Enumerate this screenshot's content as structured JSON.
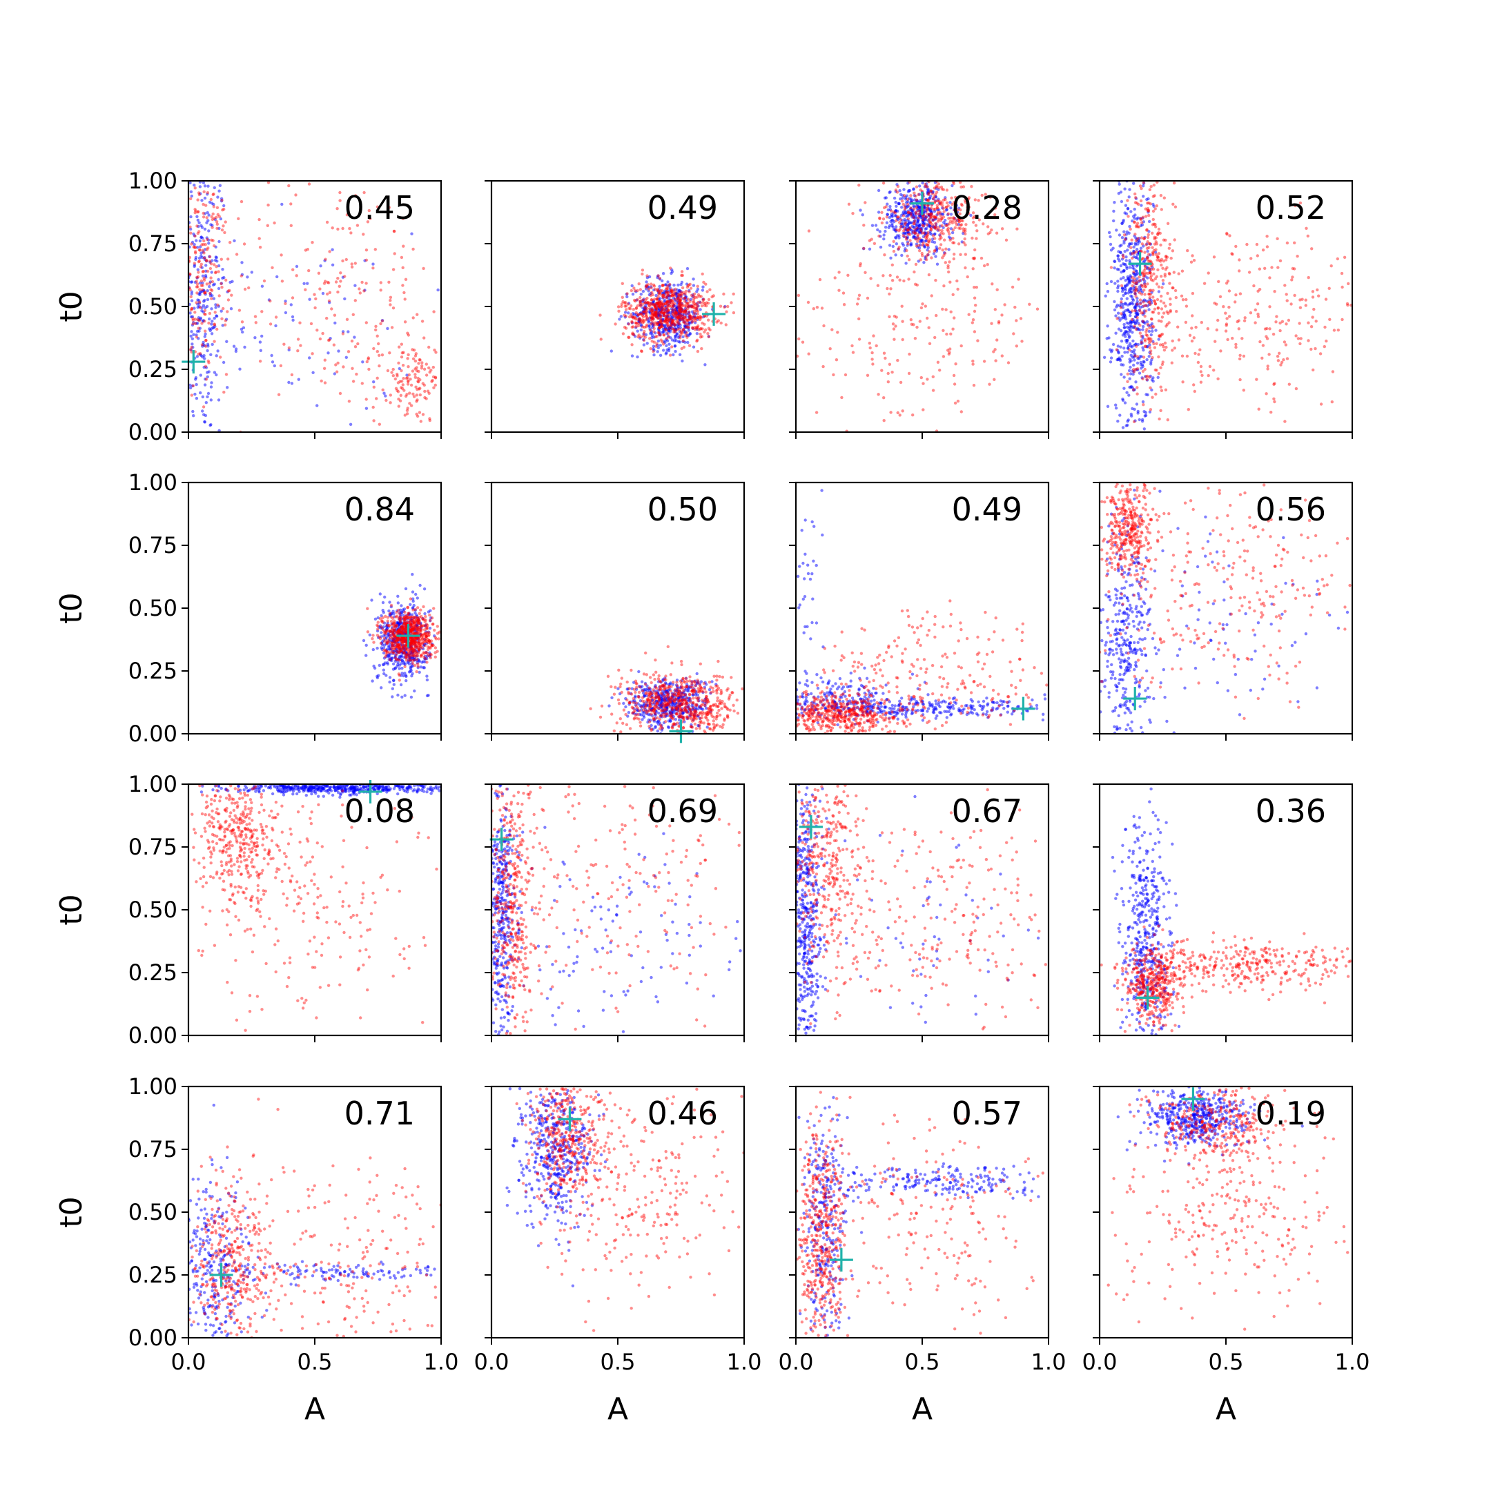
{
  "chart_data": {
    "type": "scatter",
    "layout": "4x4 grid of scatter panels",
    "x_label": "A",
    "y_label": "t0",
    "xlim": [
      0,
      1
    ],
    "ylim": [
      0,
      1
    ],
    "x_ticks": [
      0.0,
      0.5,
      1.0
    ],
    "x_tick_labels": [
      "0.0",
      "0.5",
      "1.0"
    ],
    "y_ticks": [
      0.0,
      0.25,
      0.5,
      0.75,
      1.0
    ],
    "y_tick_labels": [
      "0.00",
      "0.25",
      "0.50",
      "0.75",
      "1.00"
    ],
    "series_styles": [
      {
        "name": "blue samples",
        "color": "#0000ff"
      },
      {
        "name": "red samples",
        "color": "#ff0000"
      },
      {
        "name": "true value marker",
        "color": "#20b2aa",
        "marker": "+"
      }
    ],
    "panels": [
      {
        "value_label": "0.45",
        "marker": [
          0.02,
          0.28
        ],
        "clusters": [
          {
            "color": "blue",
            "n": 320,
            "cx": 0.05,
            "cy": 0.55,
            "sx": 0.05,
            "sy": 0.3
          },
          {
            "color": "blue",
            "n": 90,
            "cx": 0.4,
            "cy": 0.4,
            "sx": 0.25,
            "sy": 0.2
          },
          {
            "color": "red",
            "n": 220,
            "cx": 0.06,
            "cy": 0.65,
            "sx": 0.05,
            "sy": 0.2
          },
          {
            "color": "red",
            "n": 130,
            "cx": 0.88,
            "cy": 0.2,
            "sx": 0.07,
            "sy": 0.08
          },
          {
            "color": "red",
            "n": 220,
            "cx": 0.6,
            "cy": 0.55,
            "sx": 0.25,
            "sy": 0.25
          }
        ]
      },
      {
        "value_label": "0.49",
        "marker": [
          0.88,
          0.47
        ],
        "clusters": [
          {
            "color": "blue",
            "n": 500,
            "cx": 0.7,
            "cy": 0.47,
            "sx": 0.07,
            "sy": 0.07
          },
          {
            "color": "red",
            "n": 650,
            "cx": 0.7,
            "cy": 0.48,
            "sx": 0.09,
            "sy": 0.06
          }
        ]
      },
      {
        "value_label": "0.28",
        "marker": [
          0.5,
          0.91
        ],
        "clusters": [
          {
            "color": "blue",
            "n": 450,
            "cx": 0.48,
            "cy": 0.85,
            "sx": 0.07,
            "sy": 0.07
          },
          {
            "color": "red",
            "n": 350,
            "cx": 0.55,
            "cy": 0.85,
            "sx": 0.1,
            "sy": 0.08
          },
          {
            "color": "red",
            "n": 250,
            "cx": 0.45,
            "cy": 0.45,
            "sx": 0.28,
            "sy": 0.22
          }
        ]
      },
      {
        "value_label": "0.52",
        "marker": [
          0.16,
          0.67
        ],
        "clusters": [
          {
            "color": "blue",
            "n": 550,
            "cx": 0.13,
            "cy": 0.5,
            "sx": 0.04,
            "sy": 0.25
          },
          {
            "color": "red",
            "n": 350,
            "cx": 0.2,
            "cy": 0.6,
            "sx": 0.05,
            "sy": 0.22
          },
          {
            "color": "red",
            "n": 260,
            "cx": 0.6,
            "cy": 0.45,
            "sx": 0.25,
            "sy": 0.18
          }
        ]
      },
      {
        "value_label": "0.84",
        "marker": [
          0.87,
          0.39
        ],
        "clusters": [
          {
            "color": "blue",
            "n": 500,
            "cx": 0.85,
            "cy": 0.37,
            "sx": 0.05,
            "sy": 0.08
          },
          {
            "color": "red",
            "n": 650,
            "cx": 0.87,
            "cy": 0.39,
            "sx": 0.05,
            "sy": 0.05
          }
        ]
      },
      {
        "value_label": "0.50",
        "marker": [
          0.75,
          0.01
        ],
        "clusters": [
          {
            "color": "blue",
            "n": 450,
            "cx": 0.7,
            "cy": 0.12,
            "sx": 0.08,
            "sy": 0.05
          },
          {
            "color": "red",
            "n": 600,
            "cx": 0.75,
            "cy": 0.12,
            "sx": 0.12,
            "sy": 0.06
          }
        ]
      },
      {
        "value_label": "0.49",
        "marker": [
          0.9,
          0.1
        ],
        "clusters": [
          {
            "color": "blue",
            "n": 300,
            "cx": 0.5,
            "cy": 0.1,
            "sx": 0.3,
            "sy": 0.02
          },
          {
            "color": "blue",
            "n": 150,
            "cx": 0.2,
            "cy": 0.15,
            "sx": 0.1,
            "sy": 0.05
          },
          {
            "color": "blue",
            "n": 40,
            "cx": 0.05,
            "cy": 0.6,
            "sx": 0.03,
            "sy": 0.25
          },
          {
            "color": "red",
            "n": 450,
            "cx": 0.18,
            "cy": 0.08,
            "sx": 0.12,
            "sy": 0.04
          },
          {
            "color": "red",
            "n": 250,
            "cx": 0.55,
            "cy": 0.2,
            "sx": 0.25,
            "sy": 0.15
          }
        ]
      },
      {
        "value_label": "0.56",
        "marker": [
          0.14,
          0.14
        ],
        "clusters": [
          {
            "color": "blue",
            "n": 350,
            "cx": 0.1,
            "cy": 0.35,
            "sx": 0.05,
            "sy": 0.25
          },
          {
            "color": "blue",
            "n": 80,
            "cx": 0.5,
            "cy": 0.4,
            "sx": 0.25,
            "sy": 0.2
          },
          {
            "color": "red",
            "n": 350,
            "cx": 0.12,
            "cy": 0.8,
            "sx": 0.05,
            "sy": 0.1
          },
          {
            "color": "red",
            "n": 250,
            "cx": 0.5,
            "cy": 0.6,
            "sx": 0.25,
            "sy": 0.2
          }
        ]
      },
      {
        "value_label": "0.08",
        "marker": [
          0.72,
          0.97
        ],
        "clusters": [
          {
            "color": "blue",
            "n": 500,
            "cx": 0.6,
            "cy": 0.985,
            "sx": 0.22,
            "sy": 0.012
          },
          {
            "color": "red",
            "n": 350,
            "cx": 0.2,
            "cy": 0.8,
            "sx": 0.08,
            "sy": 0.13
          },
          {
            "color": "red",
            "n": 250,
            "cx": 0.45,
            "cy": 0.55,
            "sx": 0.25,
            "sy": 0.25
          }
        ]
      },
      {
        "value_label": "0.69",
        "marker": [
          0.04,
          0.78
        ],
        "clusters": [
          {
            "color": "blue",
            "n": 400,
            "cx": 0.04,
            "cy": 0.5,
            "sx": 0.03,
            "sy": 0.28
          },
          {
            "color": "blue",
            "n": 120,
            "cx": 0.5,
            "cy": 0.35,
            "sx": 0.28,
            "sy": 0.2
          },
          {
            "color": "red",
            "n": 400,
            "cx": 0.08,
            "cy": 0.55,
            "sx": 0.05,
            "sy": 0.28
          },
          {
            "color": "red",
            "n": 200,
            "cx": 0.5,
            "cy": 0.6,
            "sx": 0.28,
            "sy": 0.25
          }
        ]
      },
      {
        "value_label": "0.67",
        "marker": [
          0.06,
          0.83
        ],
        "clusters": [
          {
            "color": "blue",
            "n": 450,
            "cx": 0.04,
            "cy": 0.45,
            "sx": 0.03,
            "sy": 0.3
          },
          {
            "color": "blue",
            "n": 60,
            "cx": 0.5,
            "cy": 0.4,
            "sx": 0.3,
            "sy": 0.2
          },
          {
            "color": "red",
            "n": 350,
            "cx": 0.12,
            "cy": 0.7,
            "sx": 0.07,
            "sy": 0.2
          },
          {
            "color": "red",
            "n": 250,
            "cx": 0.55,
            "cy": 0.45,
            "sx": 0.28,
            "sy": 0.25
          }
        ]
      },
      {
        "value_label": "0.36",
        "marker": [
          0.19,
          0.15
        ],
        "clusters": [
          {
            "color": "blue",
            "n": 450,
            "cx": 0.18,
            "cy": 0.35,
            "sx": 0.05,
            "sy": 0.25
          },
          {
            "color": "red",
            "n": 400,
            "cx": 0.22,
            "cy": 0.2,
            "sx": 0.06,
            "sy": 0.08
          },
          {
            "color": "red",
            "n": 300,
            "cx": 0.6,
            "cy": 0.28,
            "sx": 0.22,
            "sy": 0.05
          }
        ]
      },
      {
        "value_label": "0.71",
        "marker": [
          0.13,
          0.25
        ],
        "clusters": [
          {
            "color": "blue",
            "n": 300,
            "cx": 0.1,
            "cy": 0.25,
            "sx": 0.08,
            "sy": 0.2
          },
          {
            "color": "blue",
            "n": 120,
            "cx": 0.6,
            "cy": 0.26,
            "sx": 0.25,
            "sy": 0.02
          },
          {
            "color": "red",
            "n": 350,
            "cx": 0.18,
            "cy": 0.3,
            "sx": 0.08,
            "sy": 0.15
          },
          {
            "color": "red",
            "n": 200,
            "cx": 0.6,
            "cy": 0.3,
            "sx": 0.25,
            "sy": 0.2
          }
        ]
      },
      {
        "value_label": "0.46",
        "marker": [
          0.31,
          0.87
        ],
        "clusters": [
          {
            "color": "blue",
            "n": 450,
            "cx": 0.25,
            "cy": 0.75,
            "sx": 0.07,
            "sy": 0.15
          },
          {
            "color": "red",
            "n": 350,
            "cx": 0.3,
            "cy": 0.8,
            "sx": 0.08,
            "sy": 0.12
          },
          {
            "color": "red",
            "n": 250,
            "cx": 0.6,
            "cy": 0.6,
            "sx": 0.2,
            "sy": 0.22
          }
        ]
      },
      {
        "value_label": "0.57",
        "marker": [
          0.18,
          0.31
        ],
        "clusters": [
          {
            "color": "blue",
            "n": 300,
            "cx": 0.12,
            "cy": 0.45,
            "sx": 0.05,
            "sy": 0.28
          },
          {
            "color": "blue",
            "n": 200,
            "cx": 0.6,
            "cy": 0.62,
            "sx": 0.25,
            "sy": 0.03
          },
          {
            "color": "red",
            "n": 450,
            "cx": 0.1,
            "cy": 0.4,
            "sx": 0.05,
            "sy": 0.25
          },
          {
            "color": "red",
            "n": 200,
            "cx": 0.5,
            "cy": 0.45,
            "sx": 0.25,
            "sy": 0.2
          }
        ]
      },
      {
        "value_label": "0.19",
        "marker": [
          0.37,
          0.95
        ],
        "clusters": [
          {
            "color": "blue",
            "n": 450,
            "cx": 0.38,
            "cy": 0.88,
            "sx": 0.1,
            "sy": 0.06
          },
          {
            "color": "red",
            "n": 300,
            "cx": 0.45,
            "cy": 0.85,
            "sx": 0.12,
            "sy": 0.08
          },
          {
            "color": "red",
            "n": 280,
            "cx": 0.5,
            "cy": 0.5,
            "sx": 0.25,
            "sy": 0.22
          }
        ]
      }
    ]
  }
}
